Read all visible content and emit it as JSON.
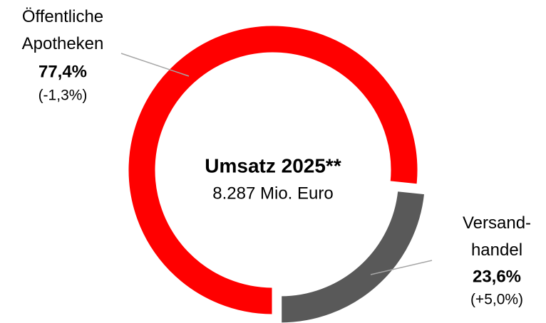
{
  "chart_data": {
    "type": "donut",
    "title": "Umsatz 2025**",
    "subtitle": "8.287 Mio. Euro",
    "categories": [
      "Öffentliche\nApotheken",
      "Versand-\nhandel"
    ],
    "values": [
      77.4,
      23.6
    ],
    "value_labels": [
      "77,4%",
      "23,6%"
    ],
    "annotations": [
      "(-1,3%)",
      "(+5,0%)"
    ],
    "colors": [
      "#ff0000",
      "#595959"
    ]
  }
}
